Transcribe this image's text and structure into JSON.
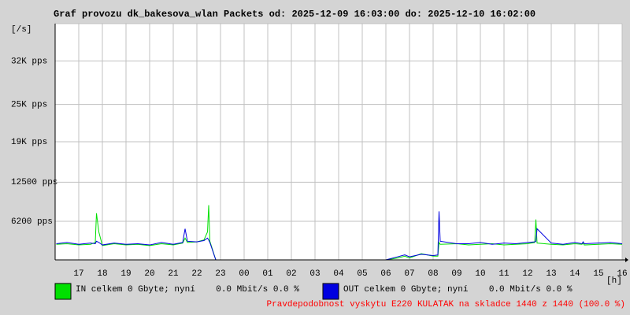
{
  "chart_data": {
    "type": "line",
    "title": "Graf provozu dk_bakesova_wlan Packets od: 2025-12-09 16:03:00 do: 2025-12-10 16:02:00",
    "y_unit": "[/s]",
    "x_unit": "[h]",
    "x": [
      0.05,
      0.5,
      1,
      1.5,
      1.7,
      1.75,
      1.85,
      2,
      2.5,
      3,
      3.5,
      4,
      4.5,
      5,
      5.4,
      5.5,
      5.6,
      6,
      6.3,
      6.45,
      6.5,
      6.55,
      6.8,
      7,
      7.5,
      8,
      9,
      10,
      11,
      12,
      13,
      14,
      14.5,
      14.8,
      15,
      15.5,
      16,
      16.2,
      16.25,
      16.3,
      17,
      17.5,
      18,
      18.5,
      19,
      19.5,
      20,
      20.3,
      20.35,
      20.4,
      21,
      21.5,
      22,
      22.3,
      22.35,
      22.4,
      23,
      23.5,
      24
    ],
    "series": [
      {
        "name": "IN celkem 0 Gbyte; nyní    0.0 Mbit/s 0.0 %",
        "color": "#00e000",
        "values": [
          2500,
          2600,
          2400,
          2500,
          2800,
          7500,
          4500,
          2300,
          2600,
          2400,
          2500,
          2300,
          2600,
          2400,
          2700,
          3500,
          2800,
          2900,
          3200,
          4500,
          8800,
          3000,
          0,
          0,
          0,
          0,
          0,
          0,
          0,
          0,
          0,
          0,
          300,
          600,
          300,
          1000,
          600,
          600,
          2800,
          2500,
          2600,
          2400,
          2500,
          2600,
          2400,
          2500,
          2600,
          2800,
          6500,
          2700,
          2500,
          2400,
          2600,
          2500,
          2700,
          2400,
          2500,
          2600,
          2500
        ]
      },
      {
        "name": "OUT celkem 0 Gbyte; nyní    0.0 Mbit/s 0.0 %",
        "color": "#0000e0",
        "values": [
          2600,
          2800,
          2500,
          2700,
          2600,
          3000,
          2800,
          2400,
          2700,
          2500,
          2600,
          2400,
          2800,
          2500,
          2800,
          5000,
          3000,
          2900,
          3100,
          3500,
          3200,
          2800,
          0,
          0,
          0,
          0,
          0,
          0,
          0,
          0,
          0,
          0,
          500,
          800,
          500,
          900,
          700,
          800,
          7800,
          3000,
          2600,
          2600,
          2800,
          2500,
          2700,
          2600,
          2800,
          2900,
          3000,
          5000,
          2700,
          2500,
          2800,
          2600,
          2900,
          2600,
          2700,
          2800,
          2600
        ]
      }
    ],
    "xlim": [
      0,
      24
    ],
    "xticks": [
      {
        "value": 1,
        "label": "17"
      },
      {
        "value": 2,
        "label": "18"
      },
      {
        "value": 3,
        "label": "19"
      },
      {
        "value": 4,
        "label": "20"
      },
      {
        "value": 5,
        "label": "21"
      },
      {
        "value": 6,
        "label": "22"
      },
      {
        "value": 7,
        "label": "23"
      },
      {
        "value": 8,
        "label": "00"
      },
      {
        "value": 9,
        "label": "01"
      },
      {
        "value": 10,
        "label": "02"
      },
      {
        "value": 11,
        "label": "03"
      },
      {
        "value": 12,
        "label": "04"
      },
      {
        "value": 13,
        "label": "05"
      },
      {
        "value": 14,
        "label": "06"
      },
      {
        "value": 15,
        "label": "07"
      },
      {
        "value": 16,
        "label": "08"
      },
      {
        "value": 17,
        "label": "09"
      },
      {
        "value": 18,
        "label": "10"
      },
      {
        "value": 19,
        "label": "11"
      },
      {
        "value": 20,
        "label": "12"
      },
      {
        "value": 21,
        "label": "13"
      },
      {
        "value": 22,
        "label": "14"
      },
      {
        "value": 23,
        "label": "15"
      },
      {
        "value": 24,
        "label": "16"
      }
    ],
    "ylim": [
      0,
      38000
    ],
    "yticks": [
      {
        "value": 6200,
        "label": "6200 pps"
      },
      {
        "value": 12500,
        "label": "12500 pps"
      },
      {
        "value": 19000,
        "label": "19K pps"
      },
      {
        "value": 25000,
        "label": "25K pps"
      },
      {
        "value": 32000,
        "label": "32K pps"
      }
    ],
    "grid": true,
    "footnote": "Pravdepodobnost vyskytu E220 KULATAK na skladce 1440 z 1440 (100.0 %)",
    "footnote_color": "#ff0000"
  }
}
